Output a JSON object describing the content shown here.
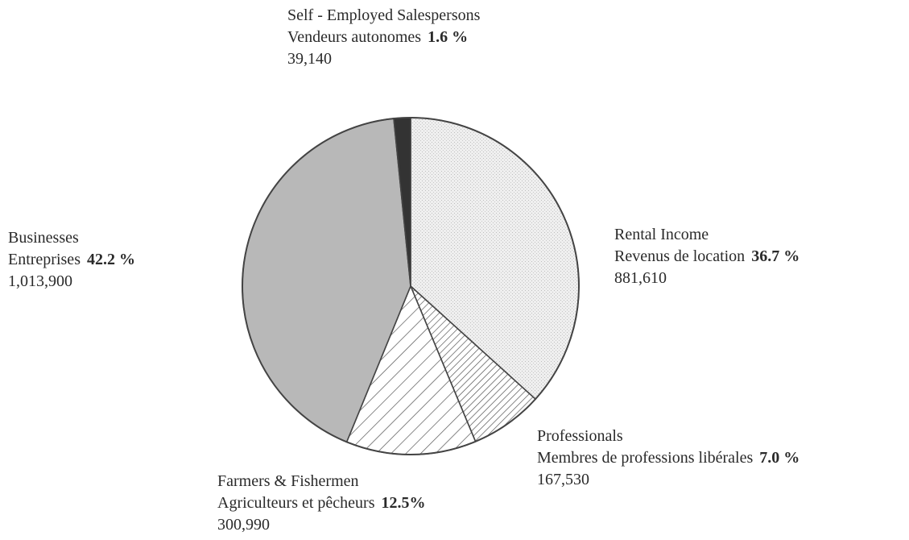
{
  "chart_data": {
    "type": "pie",
    "title": "",
    "start_angle_deg": 0,
    "direction": "clockwise",
    "slices": [
      {
        "label_en": "Rental Income",
        "label_fr": "Revenus de location",
        "percent_label": "36.7 %",
        "percent": 36.7,
        "value_label": "881,610",
        "value": 881610,
        "fill": "#ebebeb",
        "pattern": "fine-grid"
      },
      {
        "label_en": "Professionals",
        "label_fr": "Membres de professions libérales",
        "percent_label": "7.0 %",
        "percent": 7.0,
        "value_label": "167,530",
        "value": 167530,
        "fill": "#ffffff",
        "pattern": "dense-diagonal-hatch"
      },
      {
        "label_en": "Farmers & Fishermen",
        "label_fr": "Agriculteurs et pêcheurs",
        "percent_label": "12.5%",
        "percent": 12.5,
        "value_label": "300,990",
        "value": 300990,
        "fill": "#ffffff",
        "pattern": "diagonal-hatch"
      },
      {
        "label_en": "Businesses",
        "label_fr": "Entreprises",
        "percent_label": "42.2 %",
        "percent": 42.2,
        "value_label": "1,013,900",
        "value": 1013900,
        "fill": "#b8b8b8",
        "pattern": "solid"
      },
      {
        "label_en": "Self - Employed Salespersons",
        "label_fr": "Vendeurs autonomes",
        "percent_label": "1.6 %",
        "percent": 1.6,
        "value_label": "39,140",
        "value": 39140,
        "fill": "#333333",
        "pattern": "solid"
      }
    ],
    "legend": "labels-around-pie"
  }
}
